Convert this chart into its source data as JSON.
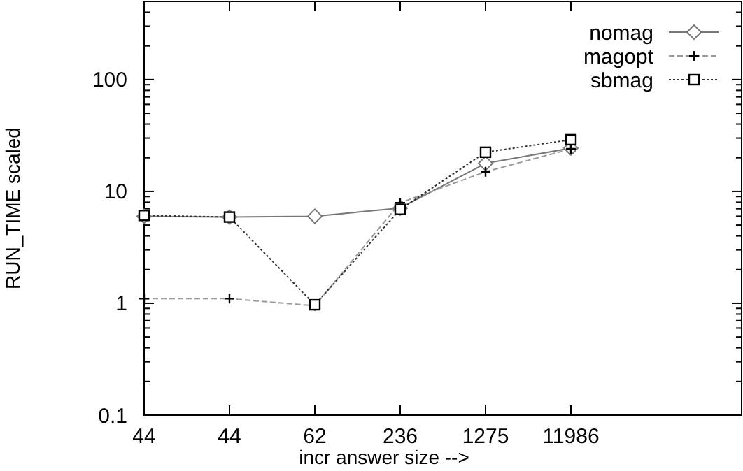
{
  "chart_data": {
    "type": "line",
    "xlabel": "incr answer size -->",
    "ylabel": "RUN_TIME scaled",
    "categories": [
      "44",
      "44",
      "62",
      "236",
      "1275",
      "11986"
    ],
    "log": "y",
    "ylim": [
      0.1,
      500
    ],
    "yticks": [
      0.1,
      1,
      10,
      100
    ],
    "grid": false,
    "legend": "top right",
    "series": [
      {
        "name": "nomag",
        "color": "#777777",
        "marker": "diamond",
        "line_style": "solid",
        "values": [
          6,
          5.9,
          6,
          7.1,
          17.8,
          24.4
        ]
      },
      {
        "name": "magopt",
        "color": "#999999",
        "marker": "cross",
        "line_style": "dashed",
        "values": [
          1.1,
          1.1,
          0.95,
          7.9,
          15,
          24
        ]
      },
      {
        "name": "sbmag",
        "color": "#333333",
        "marker": "square",
        "line_style": "dotted",
        "values": [
          6.1,
          5.9,
          0.97,
          6.9,
          22.4,
          29
        ]
      }
    ]
  }
}
